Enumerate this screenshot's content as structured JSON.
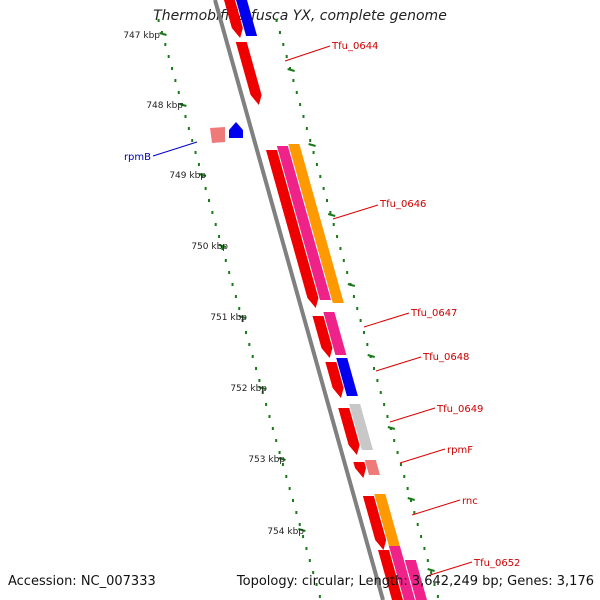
{
  "title": "Thermobifida fusca YX, complete genome",
  "footer": {
    "accession": "Accession: NC_007333",
    "stats": "Topology: circular; Length: 3,642,249 bp; Genes: 3,176"
  },
  "colors": {
    "backbone": "#808080",
    "tick": "#1a7a1a",
    "gene_label": "#cc0000",
    "rpm_label": "#0000aa",
    "red": "#ee0000",
    "pink": "#ee2288",
    "orange": "#ff9900",
    "blue": "#0000ee",
    "gray": "#c8c8c8",
    "salmon": "#ee7a7a"
  },
  "ruler": {
    "unit": "kbp",
    "labels": [
      "747 kbp",
      "748 kbp",
      "749 kbp",
      "750 kbp",
      "751 kbp",
      "752 kbp",
      "753 kbp",
      "754 kbp"
    ]
  },
  "gene_labels": [
    {
      "name": "Tfu_0644",
      "color": "gene_label"
    },
    {
      "name": "rpmB",
      "color": "rpm_label"
    },
    {
      "name": "Tfu_0646",
      "color": "gene_label"
    },
    {
      "name": "Tfu_0647",
      "color": "gene_label"
    },
    {
      "name": "Tfu_0648",
      "color": "gene_label"
    },
    {
      "name": "Tfu_0649",
      "color": "gene_label"
    },
    {
      "name": "rpmF",
      "color": "gene_label"
    },
    {
      "name": "rnc",
      "color": "gene_label"
    },
    {
      "name": "Tfu_0652",
      "color": "gene_label"
    }
  ]
}
